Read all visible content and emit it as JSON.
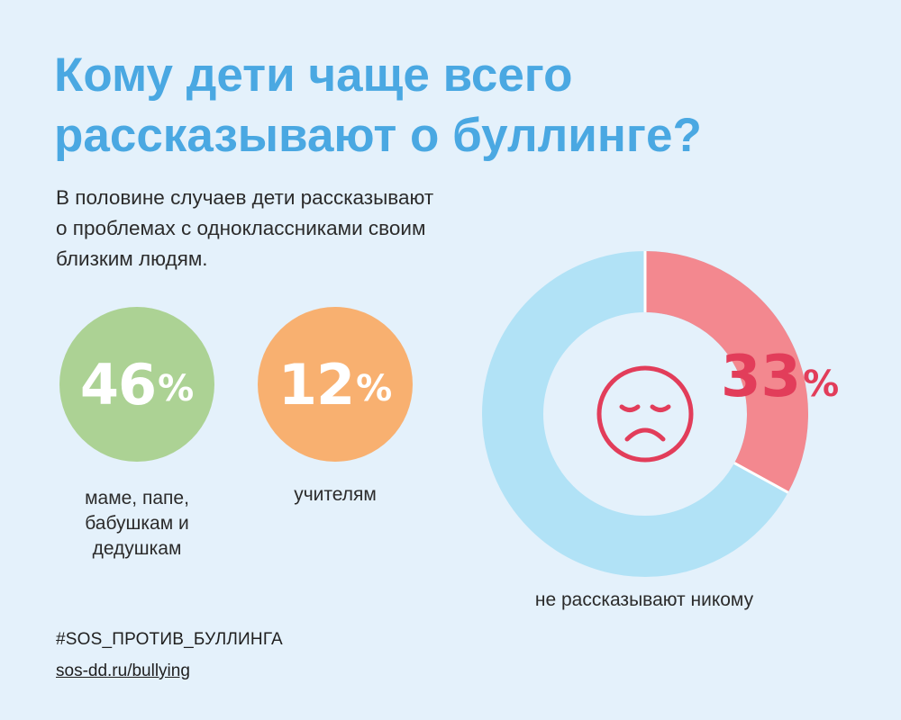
{
  "title": {
    "line1": "Кому дети чаще всего",
    "line2": "рассказывают о буллинге?"
  },
  "subtitle": {
    "line1": "В половине случаев дети рассказывают",
    "line2": "о проблемах с одноклассниками своим",
    "line3": "близким людям."
  },
  "stats": [
    {
      "value": "46",
      "unit": "%",
      "label_lines": [
        "маме, папе,",
        "бабушкам и",
        "дедушкам"
      ],
      "color": "#acd294"
    },
    {
      "value": "12",
      "unit": "%",
      "label_lines": [
        "учителям"
      ],
      "color": "#f8b070"
    }
  ],
  "donut": {
    "percent": 33,
    "value_text": "33",
    "unit": "%",
    "label": "не рассказывают никому",
    "icon": "sad-face-icon",
    "colors": {
      "highlight": "#f3888f",
      "rest": "#b1e2f6",
      "text": "#e23d5a",
      "icon": "#e23d5a"
    }
  },
  "footer": {
    "hashtag": "#SOS_ПРОТИВ_БУЛЛИНГА",
    "link": "sos-dd.ru/bullying"
  },
  "colors": {
    "background": "#e4f1fb",
    "title": "#4aa8e2"
  }
}
